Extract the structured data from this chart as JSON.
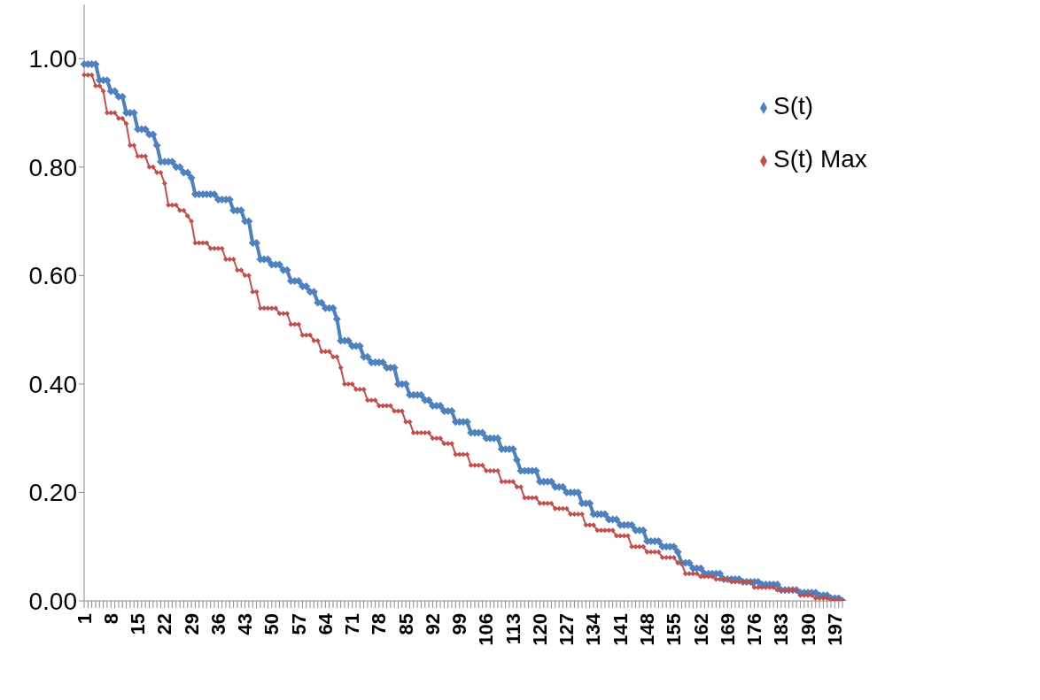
{
  "chart_data": {
    "type": "line",
    "categories": [
      "1",
      null,
      null,
      null,
      null,
      null,
      null,
      "8",
      null,
      null,
      null,
      null,
      null,
      null,
      "15",
      null,
      null,
      null,
      null,
      null,
      null,
      "22",
      null,
      null,
      null,
      null,
      null,
      null,
      "29",
      null,
      null,
      null,
      null,
      null,
      null,
      "36",
      null,
      null,
      null,
      null,
      null,
      null,
      "43",
      null,
      null,
      null,
      null,
      null,
      null,
      "50",
      null,
      null,
      null,
      null,
      null,
      null,
      "57",
      null,
      null,
      null,
      null,
      null,
      null,
      "64",
      null,
      null,
      null,
      null,
      null,
      null,
      "71",
      null,
      null,
      null,
      null,
      null,
      null,
      "78",
      null,
      null,
      null,
      null,
      null,
      null,
      "85",
      null,
      null,
      null,
      null,
      null,
      null,
      "92",
      null,
      null,
      null,
      null,
      null,
      null,
      "99",
      null,
      null,
      null,
      null,
      null,
      null,
      "106",
      null,
      null,
      null,
      null,
      null,
      null,
      "113",
      null,
      null,
      null,
      null,
      null,
      null,
      "120",
      null,
      null,
      null,
      null,
      null,
      null,
      "127",
      null,
      null,
      null,
      null,
      null,
      null,
      "134",
      null,
      null,
      null,
      null,
      null,
      null,
      "141",
      null,
      null,
      null,
      null,
      null,
      null,
      "148",
      null,
      null,
      null,
      null,
      null,
      null,
      "155",
      null,
      null,
      null,
      null,
      null,
      null,
      "162",
      null,
      null,
      null,
      null,
      null,
      null,
      "169",
      null,
      null,
      null,
      null,
      null,
      null,
      "176",
      null,
      null,
      null,
      null,
      null,
      null,
      "183",
      null,
      null,
      null,
      null,
      null,
      null,
      "190",
      null,
      null,
      null,
      null,
      null,
      null,
      "197",
      null,
      null
    ],
    "series": [
      {
        "name": "S(t)",
        "color": "#4f81bd",
        "values": [
          0.99,
          0.99,
          0.99,
          0.99,
          0.96,
          0.96,
          0.96,
          0.94,
          0.94,
          0.93,
          0.93,
          0.9,
          0.9,
          0.9,
          0.87,
          0.87,
          0.87,
          0.86,
          0.86,
          0.84,
          0.81,
          0.81,
          0.81,
          0.81,
          0.8,
          0.8,
          0.79,
          0.79,
          0.78,
          0.75,
          0.75,
          0.75,
          0.75,
          0.75,
          0.75,
          0.74,
          0.74,
          0.74,
          0.74,
          0.72,
          0.72,
          0.72,
          0.7,
          0.7,
          0.66,
          0.66,
          0.63,
          0.63,
          0.63,
          0.62,
          0.62,
          0.62,
          0.61,
          0.61,
          0.59,
          0.59,
          0.59,
          0.58,
          0.58,
          0.57,
          0.57,
          0.55,
          0.55,
          0.54,
          0.54,
          0.54,
          0.52,
          0.48,
          0.48,
          0.48,
          0.47,
          0.47,
          0.47,
          0.45,
          0.45,
          0.44,
          0.44,
          0.44,
          0.44,
          0.43,
          0.43,
          0.43,
          0.4,
          0.4,
          0.4,
          0.38,
          0.38,
          0.38,
          0.38,
          0.37,
          0.37,
          0.36,
          0.36,
          0.36,
          0.35,
          0.35,
          0.35,
          0.33,
          0.33,
          0.33,
          0.33,
          0.31,
          0.31,
          0.31,
          0.31,
          0.3,
          0.3,
          0.3,
          0.3,
          0.28,
          0.28,
          0.28,
          0.28,
          0.26,
          0.24,
          0.24,
          0.24,
          0.24,
          0.24,
          0.22,
          0.22,
          0.22,
          0.22,
          0.21,
          0.21,
          0.21,
          0.2,
          0.2,
          0.2,
          0.2,
          0.18,
          0.18,
          0.18,
          0.16,
          0.16,
          0.16,
          0.16,
          0.15,
          0.15,
          0.15,
          0.14,
          0.14,
          0.14,
          0.14,
          0.13,
          0.13,
          0.13,
          0.11,
          0.11,
          0.11,
          0.11,
          0.1,
          0.1,
          0.1,
          0.1,
          0.09,
          0.07,
          0.07,
          0.07,
          0.06,
          0.06,
          0.06,
          0.05,
          0.05,
          0.05,
          0.05,
          0.05,
          0.04,
          0.04,
          0.04,
          0.04,
          0.04,
          0.035,
          0.035,
          0.035,
          0.035,
          0.035,
          0.03,
          0.03,
          0.03,
          0.03,
          0.03,
          0.02,
          0.02,
          0.02,
          0.02,
          0.02,
          0.015,
          0.015,
          0.015,
          0.015,
          0.015,
          0.01,
          0.01,
          0.01,
          0.005,
          0.005,
          0.005,
          0
        ]
      },
      {
        "name": "S(t) Max",
        "color": "#c0504d",
        "values": [
          0.97,
          0.97,
          0.97,
          0.95,
          0.95,
          0.94,
          0.9,
          0.9,
          0.9,
          0.89,
          0.89,
          0.88,
          0.84,
          0.84,
          0.82,
          0.82,
          0.82,
          0.8,
          0.8,
          0.79,
          0.79,
          0.77,
          0.73,
          0.73,
          0.73,
          0.72,
          0.72,
          0.71,
          0.7,
          0.66,
          0.66,
          0.66,
          0.66,
          0.65,
          0.65,
          0.65,
          0.65,
          0.63,
          0.63,
          0.63,
          0.61,
          0.61,
          0.6,
          0.6,
          0.57,
          0.57,
          0.54,
          0.54,
          0.54,
          0.54,
          0.54,
          0.53,
          0.53,
          0.53,
          0.51,
          0.51,
          0.51,
          0.49,
          0.49,
          0.49,
          0.48,
          0.48,
          0.46,
          0.46,
          0.46,
          0.45,
          0.45,
          0.43,
          0.4,
          0.4,
          0.4,
          0.39,
          0.39,
          0.39,
          0.37,
          0.37,
          0.37,
          0.36,
          0.36,
          0.36,
          0.36,
          0.35,
          0.35,
          0.35,
          0.33,
          0.33,
          0.31,
          0.31,
          0.31,
          0.31,
          0.31,
          0.3,
          0.3,
          0.3,
          0.29,
          0.29,
          0.29,
          0.27,
          0.27,
          0.27,
          0.27,
          0.25,
          0.25,
          0.25,
          0.25,
          0.24,
          0.24,
          0.24,
          0.24,
          0.22,
          0.22,
          0.22,
          0.22,
          0.21,
          0.21,
          0.19,
          0.19,
          0.19,
          0.19,
          0.18,
          0.18,
          0.18,
          0.18,
          0.17,
          0.17,
          0.17,
          0.17,
          0.16,
          0.16,
          0.16,
          0.16,
          0.14,
          0.14,
          0.14,
          0.13,
          0.13,
          0.13,
          0.13,
          0.13,
          0.12,
          0.12,
          0.12,
          0.12,
          0.1,
          0.1,
          0.1,
          0.1,
          0.09,
          0.09,
          0.09,
          0.09,
          0.08,
          0.08,
          0.08,
          0.08,
          0.07,
          0.07,
          0.05,
          0.05,
          0.05,
          0.05,
          0.045,
          0.045,
          0.045,
          0.045,
          0.04,
          0.04,
          0.04,
          0.04,
          0.035,
          0.035,
          0.035,
          0.035,
          0.035,
          0.035,
          0.025,
          0.025,
          0.025,
          0.025,
          0.025,
          0.025,
          0.02,
          0.02,
          0.02,
          0.02,
          0.02,
          0.02,
          0.01,
          0.01,
          0.01,
          0.01,
          0.005,
          0.005,
          0.005,
          0.005,
          0.002,
          0.002,
          0.002,
          0
        ]
      }
    ],
    "ylim": [
      0,
      1.1
    ],
    "yticks": [
      {
        "value": 0,
        "label": "0.00"
      },
      {
        "value": 0.2,
        "label": "0.20"
      },
      {
        "value": 0.4,
        "label": "0.40"
      },
      {
        "value": 0.6,
        "label": "0.60"
      },
      {
        "value": 0.8,
        "label": "0.80"
      },
      {
        "value": 1,
        "label": "1.00"
      }
    ],
    "grid": false,
    "legend": "top right",
    "marker": "diamond",
    "line_style": "solid"
  }
}
